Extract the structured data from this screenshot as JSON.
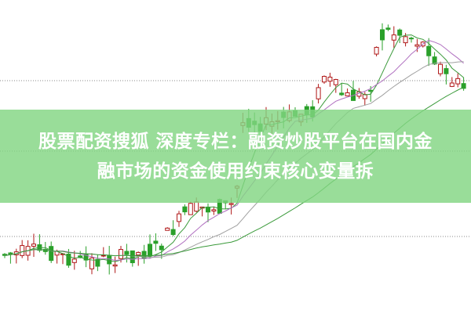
{
  "article": {
    "title_line1": "股票配资搜狐 深度专栏：融资炒股平台在国内金",
    "title_line2": "融市场的资金使用约束核心变量拆"
  },
  "colors": {
    "banner": "#82d682",
    "candle_up": "#b01818",
    "candle_down": "#2aa02a",
    "ma_purple": "#b070c0",
    "ma_green": "#3a9a3a",
    "ma_gray": "#a0a0a0"
  }
}
